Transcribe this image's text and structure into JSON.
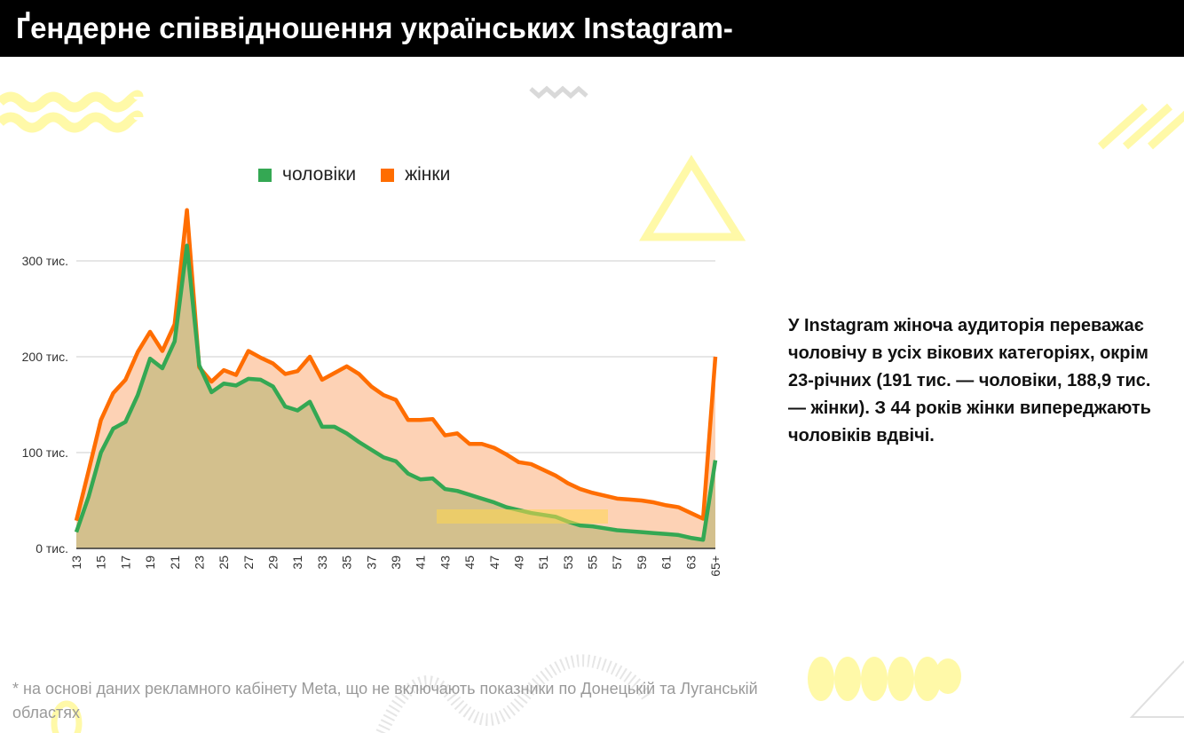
{
  "title": "Ґендерне співвідношення українських Instagram-",
  "side_text": "У Instagram жіноча аудиторія переважає чоловічу в усіх вікових категоріях, окрім 23-річних (191 тис. — чоловіки, 188,9 тис. — жінки). З 44 років жінки випереджають чоловіків вдвічі.",
  "footnote": "* на основі даних рекламного кабінету Meta, що не включають показники по Донецькій та Луганській областях",
  "colors": {
    "men": "#34a853",
    "women": "#ff6d00",
    "men_fill": "#d3c08d",
    "women_fill": "#fdd2b5",
    "decor": "#fff9a8"
  },
  "chart_data": {
    "type": "area",
    "legend_position": "top",
    "grid": true,
    "ylim": [
      0,
      350
    ],
    "y_ticks": [
      {
        "value": 0,
        "label": "0 тис."
      },
      {
        "value": 100,
        "label": "100 тис."
      },
      {
        "value": 200,
        "label": "200 тис."
      },
      {
        "value": 300,
        "label": "300 тис."
      }
    ],
    "x": [
      "13",
      "14",
      "15",
      "16",
      "17",
      "18",
      "19",
      "20",
      "21",
      "22",
      "23",
      "24",
      "25",
      "26",
      "27",
      "28",
      "29",
      "30",
      "31",
      "32",
      "33",
      "34",
      "35",
      "36",
      "37",
      "38",
      "39",
      "40",
      "41",
      "42",
      "43",
      "44",
      "45",
      "46",
      "47",
      "48",
      "49",
      "50",
      "51",
      "52",
      "53",
      "54",
      "55",
      "56",
      "57",
      "58",
      "59",
      "60",
      "61",
      "62",
      "63",
      "64",
      "65+"
    ],
    "x_tick_labels": [
      "13",
      "15",
      "17",
      "19",
      "21",
      "23",
      "25",
      "27",
      "29",
      "31",
      "33",
      "35",
      "37",
      "39",
      "41",
      "43",
      "45",
      "47",
      "49",
      "51",
      "53",
      "55",
      "57",
      "59",
      "61",
      "63",
      "65+"
    ],
    "series": [
      {
        "name": "чоловіки",
        "values": [
          17,
          54,
          100,
          125,
          132,
          160,
          198,
          188,
          216,
          316,
          191,
          163,
          172,
          170,
          177,
          176,
          169,
          148,
          144,
          153,
          127,
          127,
          120,
          111,
          103,
          95,
          91,
          78,
          72,
          73,
          62,
          60,
          56,
          52,
          48,
          43,
          40,
          37,
          35,
          33,
          28,
          24,
          23,
          21,
          19,
          18,
          17,
          16,
          15,
          14,
          11,
          9,
          92
        ]
      },
      {
        "name": "жінки",
        "values": [
          29,
          81,
          134,
          162,
          176,
          205,
          226,
          206,
          234,
          353,
          189,
          174,
          186,
          181,
          206,
          199,
          193,
          182,
          185,
          200,
          176,
          183,
          190,
          182,
          169,
          160,
          155,
          134,
          134,
          135,
          118,
          120,
          109,
          109,
          105,
          98,
          90,
          88,
          82,
          76,
          68,
          62,
          58,
          55,
          52,
          51,
          50,
          48,
          45,
          43,
          37,
          31,
          200
        ]
      }
    ]
  }
}
